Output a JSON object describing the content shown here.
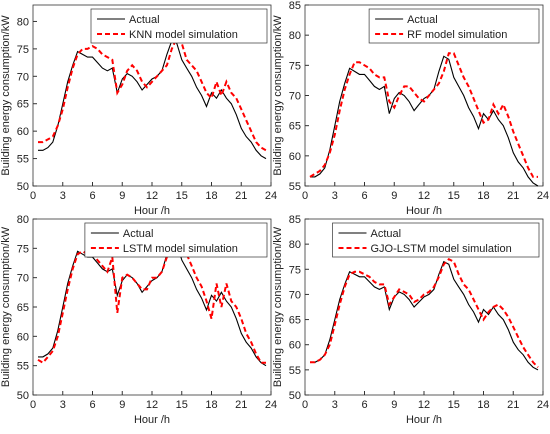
{
  "chart_data": [
    {
      "type": "line",
      "xlabel": "Hour /h",
      "ylabel": "Building energy consumption/kW",
      "legend": "upper right",
      "xlim": [
        0,
        24
      ],
      "xticks": [
        0,
        3,
        6,
        9,
        12,
        15,
        18,
        21,
        24
      ],
      "ylim": [
        50,
        83
      ],
      "yticks": [
        50,
        55,
        60,
        65,
        70,
        75,
        80
      ],
      "x": [
        0.5,
        1,
        1.5,
        2,
        2.5,
        3,
        3.5,
        4,
        4.5,
        5,
        5.5,
        6,
        6.5,
        7,
        7.5,
        8,
        8.5,
        9,
        9.5,
        10,
        10.5,
        11,
        11.5,
        12,
        12.5,
        13,
        13.5,
        14,
        14.5,
        15,
        15.5,
        16,
        16.5,
        17,
        17.5,
        18,
        18.5,
        19,
        19.5,
        20,
        20.5,
        21,
        21.5,
        22,
        22.5,
        23,
        23.5
      ],
      "series": [
        {
          "name": "Actual",
          "color": "#000000",
          "dash": false,
          "values": [
            56.5,
            56.5,
            57,
            58,
            61,
            65,
            69,
            72,
            74.5,
            74,
            73.5,
            73.5,
            72.5,
            71.5,
            71,
            71.5,
            67,
            69.5,
            70.5,
            70,
            69,
            67.5,
            68.5,
            69.5,
            70,
            71,
            74,
            76.5,
            76,
            73,
            71.5,
            70,
            68,
            66.5,
            64.5,
            67,
            66,
            67.5,
            66,
            65,
            63,
            60.5,
            59,
            58,
            56.5,
            55.5,
            55
          ]
        },
        {
          "name": "KNN model simulation",
          "color": "#ff0000",
          "dash": true,
          "values": [
            58,
            58,
            58.5,
            59,
            61,
            64,
            68,
            71.5,
            74,
            75,
            75,
            75.5,
            75,
            74,
            73.5,
            73,
            67,
            68.5,
            71,
            72,
            71,
            69,
            68,
            69,
            70,
            71,
            72,
            75,
            77,
            76,
            73,
            72,
            71,
            69,
            67,
            66,
            69,
            66.5,
            69,
            67,
            66,
            64,
            62,
            60,
            58,
            57,
            56.5
          ]
        }
      ]
    },
    {
      "type": "line",
      "xlabel": "Hour /h",
      "ylabel": "Building energy consumption/kW",
      "legend": "upper right",
      "xlim": [
        0,
        24
      ],
      "xticks": [
        0,
        3,
        6,
        9,
        12,
        15,
        18,
        21,
        24
      ],
      "ylim": [
        55,
        85
      ],
      "yticks": [
        55,
        60,
        65,
        70,
        75,
        80,
        85
      ],
      "x": [
        0.5,
        1,
        1.5,
        2,
        2.5,
        3,
        3.5,
        4,
        4.5,
        5,
        5.5,
        6,
        6.5,
        7,
        7.5,
        8,
        8.5,
        9,
        9.5,
        10,
        10.5,
        11,
        11.5,
        12,
        12.5,
        13,
        13.5,
        14,
        14.5,
        15,
        15.5,
        16,
        16.5,
        17,
        17.5,
        18,
        18.5,
        19,
        19.5,
        20,
        20.5,
        21,
        21.5,
        22,
        22.5,
        23,
        23.5
      ],
      "series": [
        {
          "name": "Actual",
          "color": "#000000",
          "dash": false,
          "values": [
            56.5,
            56.5,
            57,
            58,
            61,
            65,
            69,
            72,
            74.5,
            74,
            73.5,
            73.5,
            72.5,
            71.5,
            71,
            71.5,
            67,
            69.5,
            70.5,
            70,
            69,
            67.5,
            68.5,
            69.5,
            70,
            71,
            74,
            76.5,
            76,
            73,
            71.5,
            70,
            68,
            66.5,
            64.5,
            67,
            66,
            67.5,
            66,
            65,
            63,
            60.5,
            59,
            58,
            56.5,
            55.5,
            55
          ]
        },
        {
          "name": "RF model simulation",
          "color": "#ff0000",
          "dash": true,
          "values": [
            56.5,
            57,
            57.5,
            58.5,
            60.5,
            63.5,
            67.5,
            71,
            73.5,
            75.5,
            75.5,
            75,
            74.5,
            73.5,
            73,
            73,
            69,
            68,
            70,
            71.5,
            71.5,
            70.5,
            69.5,
            69,
            70,
            71,
            72,
            74,
            77,
            77,
            75,
            73,
            71.5,
            69.5,
            67.5,
            65.5,
            66,
            68.5,
            67,
            68.5,
            66.5,
            64,
            62,
            60,
            58,
            56.5,
            56.5
          ]
        }
      ]
    },
    {
      "type": "line",
      "xlabel": "Hour /h",
      "ylabel": "Building energy consumption/kW",
      "legend": "upper right",
      "xlim": [
        0,
        24
      ],
      "xticks": [
        0,
        3,
        6,
        9,
        12,
        15,
        18,
        21,
        24
      ],
      "ylim": [
        50,
        80
      ],
      "yticks": [
        50,
        55,
        60,
        65,
        70,
        75,
        80
      ],
      "x": [
        0.5,
        1,
        1.5,
        2,
        2.5,
        3,
        3.5,
        4,
        4.5,
        5,
        5.5,
        6,
        6.5,
        7,
        7.5,
        8,
        8.5,
        9,
        9.5,
        10,
        10.5,
        11,
        11.5,
        12,
        12.5,
        13,
        13.5,
        14,
        14.5,
        15,
        15.5,
        16,
        16.5,
        17,
        17.5,
        18,
        18.5,
        19,
        19.5,
        20,
        20.5,
        21,
        21.5,
        22,
        22.5,
        23,
        23.5
      ],
      "series": [
        {
          "name": "Actual",
          "color": "#000000",
          "dash": false,
          "values": [
            56.5,
            56.5,
            57,
            58,
            61,
            65,
            69,
            72,
            74.5,
            74,
            73.5,
            73.5,
            72.5,
            71.5,
            71,
            71.5,
            67,
            69.5,
            70.5,
            70,
            69,
            67.5,
            68.5,
            69.5,
            70,
            71,
            74,
            76.5,
            76,
            73,
            71.5,
            70,
            68,
            66.5,
            64.5,
            67,
            66,
            67.5,
            66,
            65,
            63,
            60.5,
            59,
            58,
            56.5,
            55.5,
            55
          ]
        },
        {
          "name": "LSTM model simulation",
          "color": "#ff0000",
          "dash": true,
          "values": [
            56,
            55.5,
            56.5,
            57.5,
            60,
            64,
            68,
            71.5,
            74,
            74.5,
            74,
            74,
            73,
            72,
            71,
            73.5,
            64,
            70,
            70.5,
            70,
            69,
            68,
            68,
            70,
            70,
            71,
            73.5,
            75.5,
            77,
            76,
            74,
            72,
            70,
            68.5,
            66,
            63,
            69,
            65,
            69,
            66,
            65,
            63,
            60.5,
            59,
            57,
            55.5,
            55.5
          ]
        }
      ]
    },
    {
      "type": "line",
      "xlabel": "Hour /h",
      "ylabel": "Building energy consumption/kW",
      "legend": "upper right",
      "xlim": [
        0,
        24
      ],
      "xticks": [
        0,
        3,
        6,
        9,
        12,
        15,
        18,
        21,
        24
      ],
      "ylim": [
        50,
        85
      ],
      "yticks": [
        50,
        55,
        60,
        65,
        70,
        75,
        80,
        85
      ],
      "x": [
        0.5,
        1,
        1.5,
        2,
        2.5,
        3,
        3.5,
        4,
        4.5,
        5,
        5.5,
        6,
        6.5,
        7,
        7.5,
        8,
        8.5,
        9,
        9.5,
        10,
        10.5,
        11,
        11.5,
        12,
        12.5,
        13,
        13.5,
        14,
        14.5,
        15,
        15.5,
        16,
        16.5,
        17,
        17.5,
        18,
        18.5,
        19,
        19.5,
        20,
        20.5,
        21,
        21.5,
        22,
        22.5,
        23,
        23.5
      ],
      "series": [
        {
          "name": "Actual",
          "color": "#000000",
          "dash": false,
          "values": [
            56.5,
            56.5,
            57,
            58,
            61,
            65,
            69,
            72,
            74.5,
            74,
            73.5,
            73.5,
            72.5,
            71.5,
            71,
            71.5,
            67,
            69.5,
            70.5,
            70,
            69,
            67.5,
            68.5,
            69.5,
            70,
            71,
            74,
            76.5,
            76,
            73,
            71.5,
            70,
            68,
            66.5,
            64.5,
            67,
            66,
            67.5,
            66,
            65,
            63,
            60.5,
            59,
            58,
            56.5,
            55.5,
            55
          ]
        },
        {
          "name": "GJO-LSTM model simulation",
          "color": "#ff0000",
          "dash": true,
          "values": [
            56.5,
            56.5,
            57,
            58,
            60,
            64,
            68,
            71.5,
            74,
            74.5,
            74.5,
            74,
            73.5,
            72.5,
            72,
            72,
            68,
            69.5,
            71,
            70.5,
            70,
            68.5,
            69,
            70,
            70.5,
            71.5,
            73.5,
            76,
            77,
            76.5,
            74,
            72,
            71,
            69,
            67,
            65,
            66.5,
            67.5,
            68,
            67,
            65.5,
            63.5,
            61.5,
            59.5,
            58,
            56.5,
            55.5
          ]
        }
      ]
    }
  ]
}
